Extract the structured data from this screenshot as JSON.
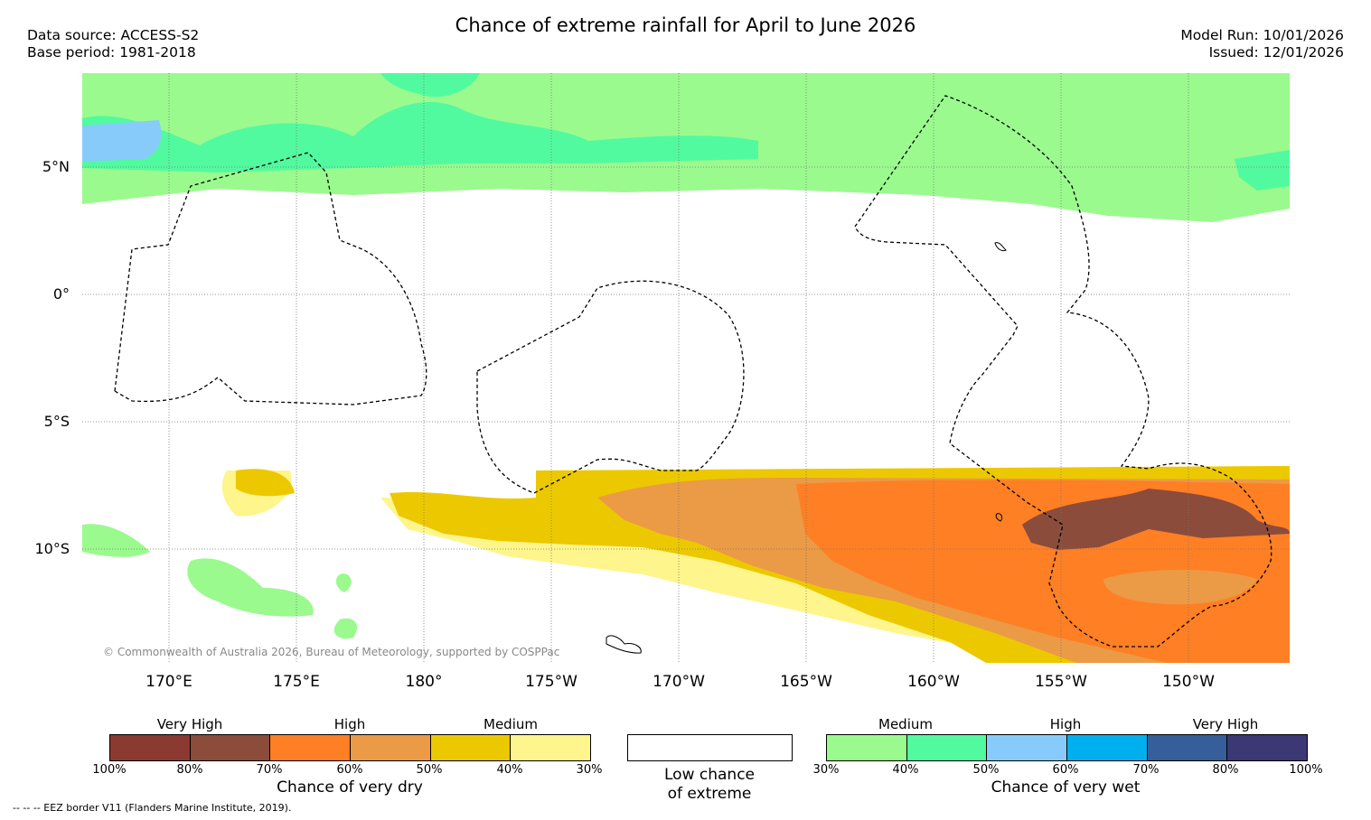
{
  "title": "Chance of extreme rainfall for April to June 2026",
  "data_source": "Data source: ACCESS-S2",
  "base_period": "Base period: 1981-2018",
  "model_run": "Model Run: 10/01/2026",
  "issued": "Issued: 12/01/2026",
  "copyright": "© Commonwealth of Australia 2026, Bureau of Meteorology, supported by COSPPac",
  "eez_note": "--  --  -- EEZ border V11 (Flanders Marine Institute, 2019).",
  "lat_labels": [
    "5°N",
    "0°",
    "5°S",
    "10°S"
  ],
  "lon_labels": [
    "170°E",
    "175°E",
    "180°",
    "175°W",
    "170°W",
    "165°W",
    "160°W",
    "155°W",
    "150°W"
  ],
  "dry_legend": {
    "title": "Chance of very dry",
    "categories": [
      "Very High",
      "High",
      "Medium"
    ],
    "colors": [
      "#8b3a32",
      "#8b4c3c",
      "#ff7f24",
      "#eb9a45",
      "#ecc800",
      "#fef58c"
    ],
    "ticks": [
      "100%",
      "80%",
      "70%",
      "60%",
      "50%",
      "40%",
      "30%"
    ]
  },
  "low_legend": {
    "line1": "Low chance",
    "line2": "of extreme"
  },
  "wet_legend": {
    "title": "Chance of very wet",
    "categories": [
      "Medium",
      "High",
      "Very High"
    ],
    "colors": [
      "#9afa8e",
      "#52fa9f",
      "#87cbfa",
      "#00b0ee",
      "#365e9b",
      "#3c3775"
    ],
    "ticks": [
      "30%",
      "40%",
      "50%",
      "60%",
      "70%",
      "80%",
      "100%"
    ]
  }
}
